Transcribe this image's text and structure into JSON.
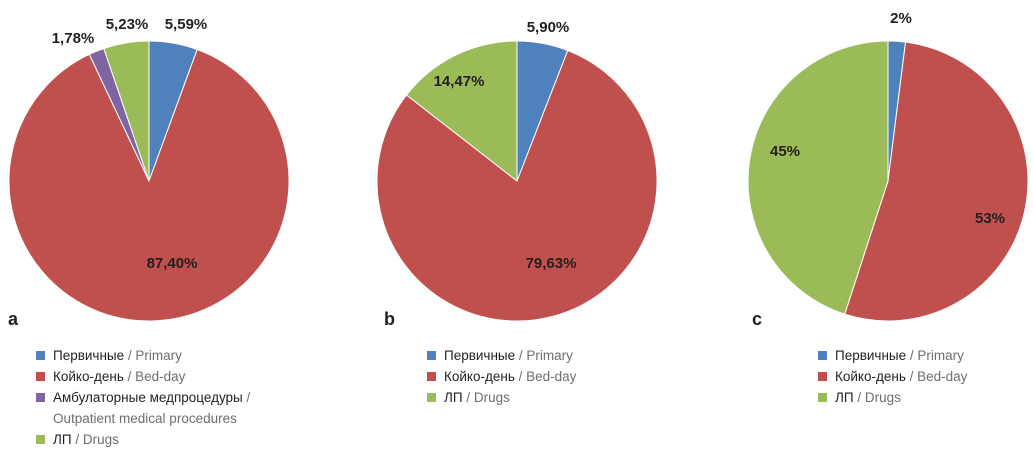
{
  "colors": {
    "primary": "#4f81bd",
    "bed_day": "#c0504d",
    "outpatient": "#8064a2",
    "drugs": "#9bbb59"
  },
  "chart_data": [
    {
      "type": "pie",
      "panel": "a",
      "slices": [
        {
          "label_ru": "Первичные",
          "label_en": "Primary",
          "value": 5.59,
          "label": "5,59%",
          "color": "#4f81bd"
        },
        {
          "label_ru": "Койко-день",
          "label_en": "Bed-day",
          "value": 87.4,
          "label": "87,40%",
          "color": "#c0504d"
        },
        {
          "label_ru": "Амбулаторные медпроцедуры",
          "label_en": "Outpatient medical procedures",
          "value": 1.78,
          "label": "1,78%",
          "color": "#8064a2"
        },
        {
          "label_ru": "ЛП",
          "label_en": "Drugs",
          "value": 5.23,
          "label": "5,23%",
          "color": "#9bbb59"
        }
      ]
    },
    {
      "type": "pie",
      "panel": "b",
      "slices": [
        {
          "label_ru": "Первичные",
          "label_en": "Primary",
          "value": 5.9,
          "label": "5,90%",
          "color": "#4f81bd"
        },
        {
          "label_ru": "Койко-день",
          "label_en": "Bed-day",
          "value": 79.63,
          "label": "79,63%",
          "color": "#c0504d"
        },
        {
          "label_ru": "ЛП",
          "label_en": "Drugs",
          "value": 14.47,
          "label": "14,47%",
          "color": "#9bbb59"
        }
      ]
    },
    {
      "type": "pie",
      "panel": "c",
      "slices": [
        {
          "label_ru": "Первичные",
          "label_en": "Primary",
          "value": 2,
          "label": "2%",
          "color": "#4f81bd"
        },
        {
          "label_ru": "Койко-день",
          "label_en": "Bed-day",
          "value": 53,
          "label": "53%",
          "color": "#c0504d"
        },
        {
          "label_ru": "ЛП",
          "label_en": "Drugs",
          "value": 45,
          "label": "45%",
          "color": "#9bbb59"
        }
      ]
    }
  ]
}
